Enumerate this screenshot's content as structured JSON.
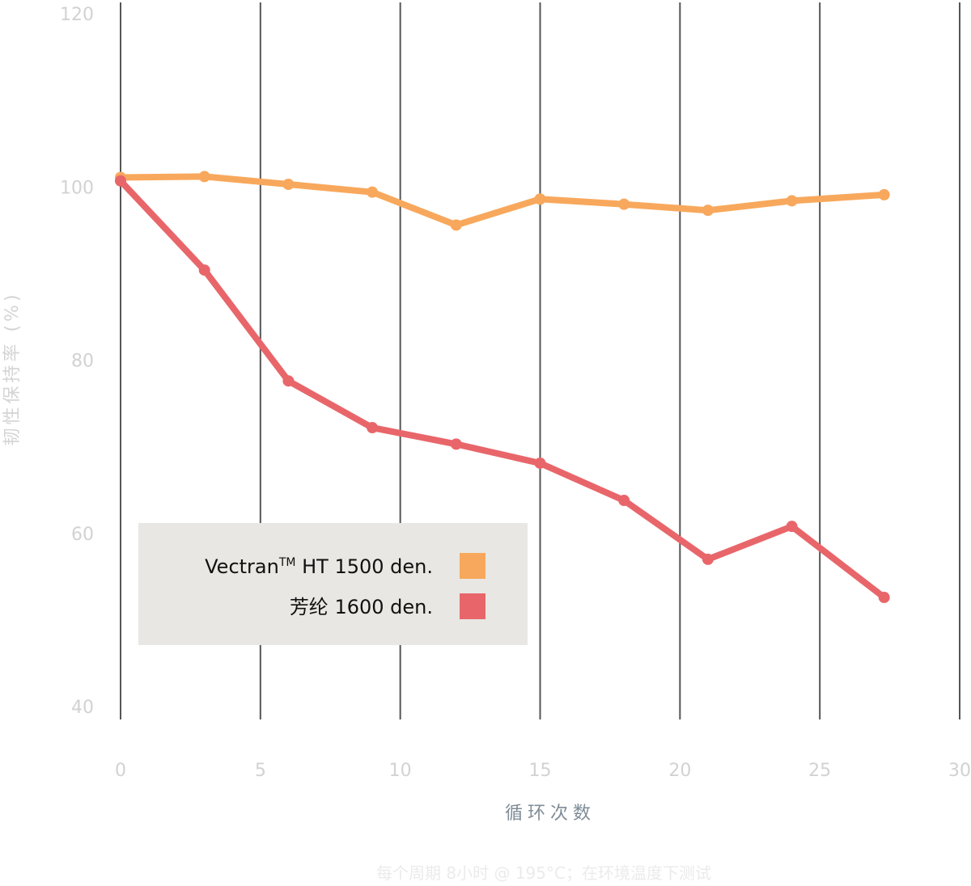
{
  "chart_data": {
    "type": "line",
    "title": "",
    "xlabel": "循环次数",
    "ylabel": "韧性保持率 (%)",
    "footnote": "每个周期 8小时 @ 195°C；在环境温度下测试",
    "xlim": [
      0,
      30
    ],
    "ylim": [
      40,
      120
    ],
    "x_ticks": [
      0,
      5,
      10,
      15,
      20,
      25,
      30
    ],
    "y_ticks": [
      40,
      60,
      80,
      100,
      120
    ],
    "grid": {
      "vertical": true,
      "horizontal": false
    },
    "legend_position": "lower-left",
    "series": [
      {
        "name": "Vectran™ HT 1500 den.",
        "legend_main": "Vectran",
        "legend_superscript": "TM",
        "legend_rest": " HT 1500 den.",
        "color": "#f8a85c",
        "x": [
          0,
          3,
          6,
          9,
          12,
          15,
          18,
          21,
          24,
          27.3
        ],
        "y": [
          101.1,
          101.2,
          100.3,
          99.4,
          95.6,
          98.6,
          98.0,
          97.3,
          98.4,
          99.1
        ]
      },
      {
        "name": "芳纶 1600 den.",
        "legend_main": "芳纶 1600 den.",
        "legend_superscript": "",
        "legend_rest": "",
        "color": "#e8666a",
        "x": [
          0,
          3,
          6,
          9,
          12,
          15,
          18,
          21,
          24,
          27.3
        ],
        "y": [
          100.7,
          90.4,
          77.6,
          72.2,
          70.3,
          68.1,
          63.8,
          57.0,
          60.8,
          52.6
        ]
      }
    ]
  }
}
